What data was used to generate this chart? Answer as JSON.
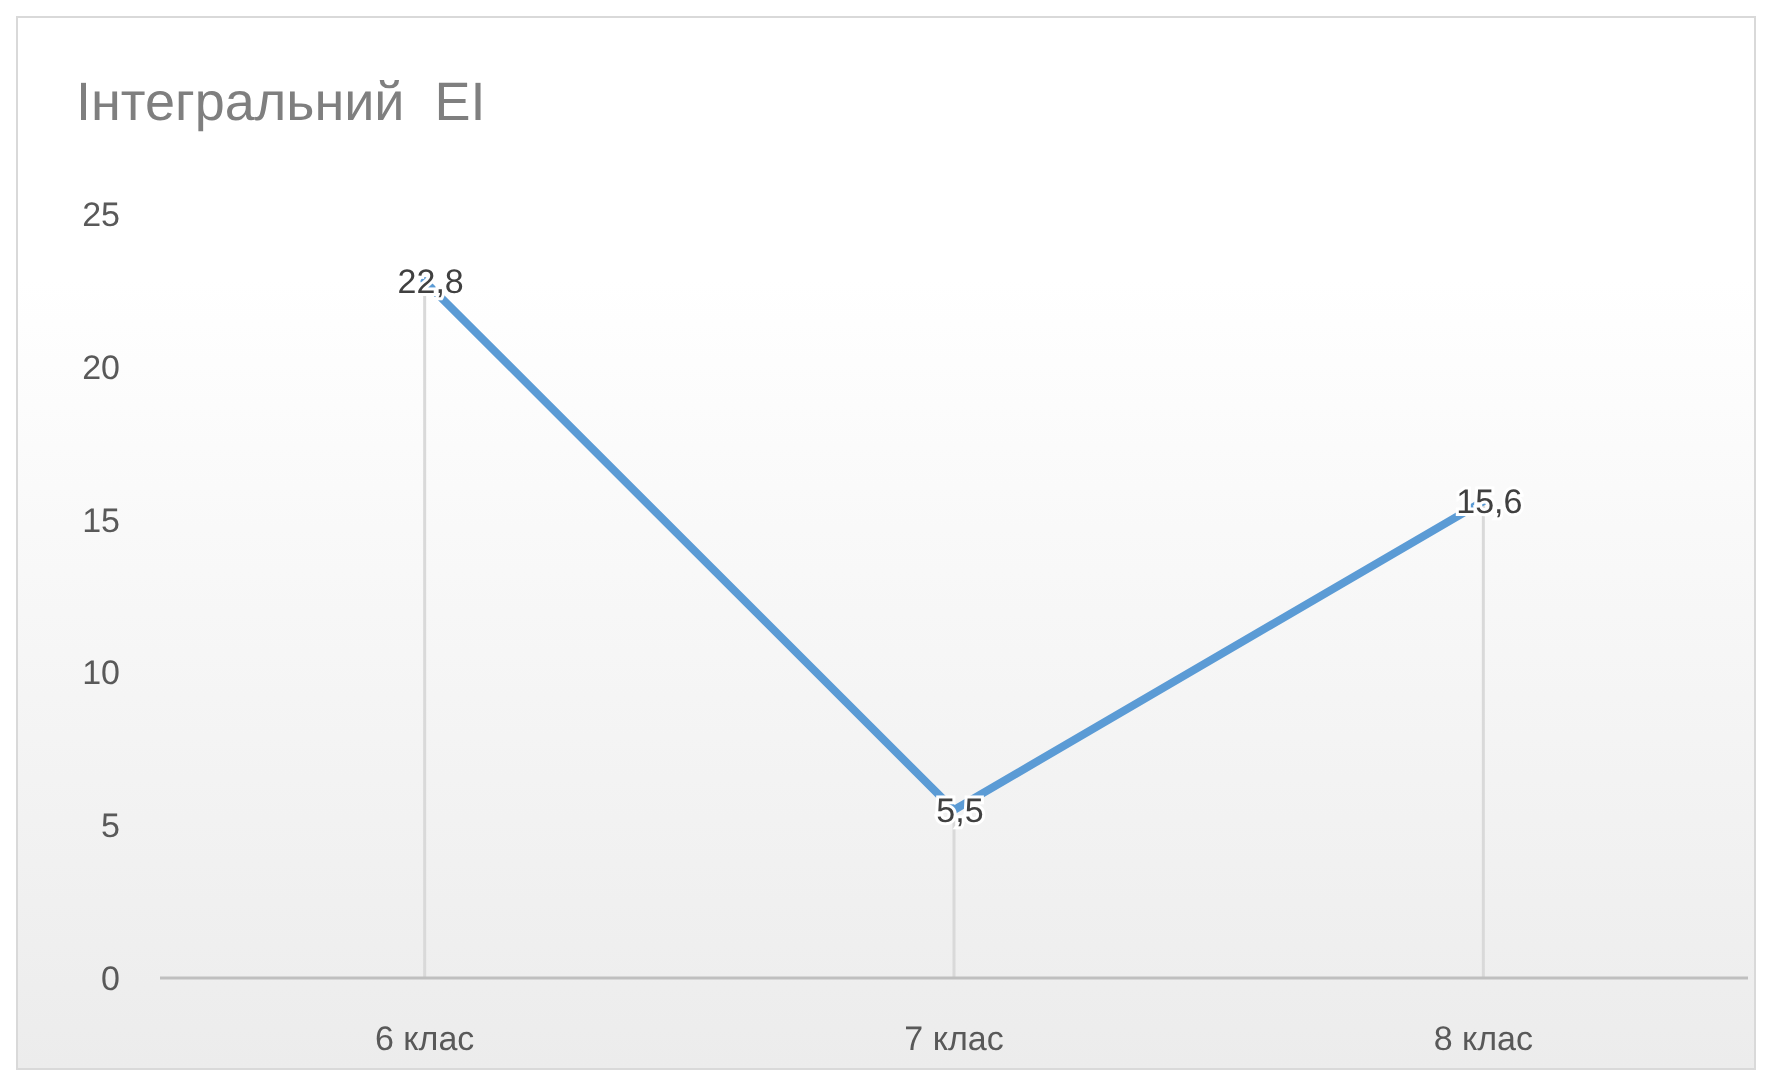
{
  "chart_data": {
    "type": "line",
    "title": "Інтегральний  EI",
    "categories": [
      "6 клас",
      "7 клас",
      "8 клас"
    ],
    "series": [
      {
        "color": "#5b9bd5",
        "values": [
          22.8,
          5.5,
          15.6
        ],
        "value_labels": [
          "22,8",
          "5,5",
          "15,6"
        ]
      }
    ],
    "ylim": [
      0,
      25
    ],
    "yticks": [
      0,
      5,
      10,
      15,
      20,
      25
    ],
    "grid": "x",
    "marker": "none",
    "line_style": "solid"
  }
}
